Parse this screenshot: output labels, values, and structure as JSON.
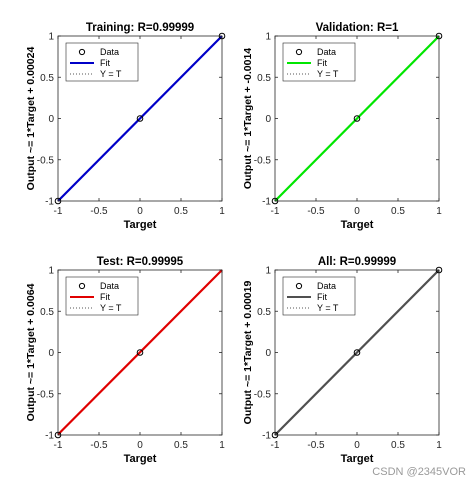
{
  "watermark": "CSDN @2345VOR",
  "legend_labels": [
    "Data",
    "Fit",
    "Y = T"
  ],
  "chart_data": [
    {
      "type": "scatter",
      "title": "Training: R=0.99999",
      "xlabel": "Target",
      "ylabel": "Output ~= 1*Target + 0.00024",
      "xlim": [
        -1,
        1
      ],
      "ylim": [
        -1,
        1
      ],
      "xticks": [
        -1,
        -0.5,
        0,
        0.5,
        1
      ],
      "yticks": [
        -1,
        -0.5,
        0,
        0.5,
        1
      ],
      "legend_position": "top-left",
      "fit_color": "#0000c8",
      "fit": {
        "slope": 1,
        "intercept": 0.00024
      },
      "series": [
        {
          "name": "Data",
          "x": [
            -1,
            0,
            1
          ],
          "y": [
            -1,
            0,
            1
          ]
        }
      ]
    },
    {
      "type": "scatter",
      "title": "Validation: R=1",
      "xlabel": "Target",
      "ylabel": "Output ~= 1*Target + -0.0014",
      "xlim": [
        -1,
        1
      ],
      "ylim": [
        -1,
        1
      ],
      "xticks": [
        -1,
        -0.5,
        0,
        0.5,
        1
      ],
      "yticks": [
        -1,
        -0.5,
        0,
        0.5,
        1
      ],
      "legend_position": "top-left",
      "fit_color": "#00e600",
      "fit": {
        "slope": 1,
        "intercept": -0.0014
      },
      "series": [
        {
          "name": "Data",
          "x": [
            -1,
            0,
            1
          ],
          "y": [
            -1,
            0,
            1
          ]
        }
      ]
    },
    {
      "type": "scatter",
      "title": "Test: R=0.99995",
      "xlabel": "Target",
      "ylabel": "Output ~= 1*Target + 0.0064",
      "xlim": [
        -1,
        1
      ],
      "ylim": [
        -1,
        1
      ],
      "xticks": [
        -1,
        -0.5,
        0,
        0.5,
        1
      ],
      "yticks": [
        -1,
        -0.5,
        0,
        0.5,
        1
      ],
      "legend_position": "top-left",
      "fit_color": "#e00000",
      "fit": {
        "slope": 1,
        "intercept": 0.0064
      },
      "series": [
        {
          "name": "Data",
          "x": [
            -1,
            0
          ],
          "y": [
            -1,
            0
          ]
        }
      ]
    },
    {
      "type": "scatter",
      "title": "All: R=0.99999",
      "xlabel": "Target",
      "ylabel": "Output ~= 1*Target + 0.00019",
      "xlim": [
        -1,
        1
      ],
      "ylim": [
        -1,
        1
      ],
      "xticks": [
        -1,
        -0.5,
        0,
        0.5,
        1
      ],
      "yticks": [
        -1,
        -0.5,
        0,
        0.5,
        1
      ],
      "legend_position": "top-left",
      "fit_color": "#505050",
      "fit": {
        "slope": 1,
        "intercept": 0.00019
      },
      "series": [
        {
          "name": "Data",
          "x": [
            -1,
            0,
            1
          ],
          "y": [
            -1,
            0,
            1
          ]
        }
      ]
    }
  ]
}
